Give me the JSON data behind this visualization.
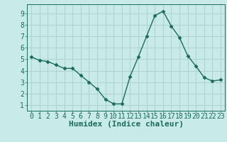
{
  "x": [
    0,
    1,
    2,
    3,
    4,
    5,
    6,
    7,
    8,
    9,
    10,
    11,
    12,
    13,
    14,
    15,
    16,
    17,
    18,
    19,
    20,
    21,
    22,
    23
  ],
  "y": [
    5.2,
    4.9,
    4.8,
    4.5,
    4.2,
    4.2,
    3.6,
    3.0,
    2.4,
    1.5,
    1.1,
    1.1,
    3.5,
    5.2,
    7.0,
    8.8,
    9.2,
    7.9,
    6.9,
    5.3,
    4.4,
    3.4,
    3.1,
    3.2
  ],
  "line_color": "#1a6b5a",
  "marker": "D",
  "marker_size": 2.5,
  "bg_color": "#c8ebe8",
  "grid_color": "#b0d4d0",
  "xlabel": "Humidex (Indice chaleur)",
  "xlabel_fontsize": 8,
  "tick_fontsize": 7,
  "ylim": [
    0.5,
    9.8
  ],
  "xlim": [
    -0.5,
    23.5
  ],
  "yticks": [
    1,
    2,
    3,
    4,
    5,
    6,
    7,
    8,
    9
  ],
  "xticks": [
    0,
    1,
    2,
    3,
    4,
    5,
    6,
    7,
    8,
    9,
    10,
    11,
    12,
    13,
    14,
    15,
    16,
    17,
    18,
    19,
    20,
    21,
    22,
    23
  ]
}
